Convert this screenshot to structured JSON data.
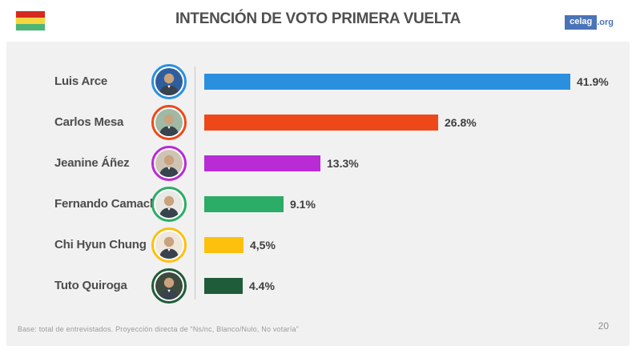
{
  "header": {
    "title": "INTENCIÓN DE VOTO PRIMERA VUELTA",
    "logo": {
      "brand": "celag",
      "suffix": ".org"
    },
    "flag": {
      "name": "bolivia-flag",
      "stripes": [
        "#D42A20",
        "#F5D640",
        "#4CB577"
      ]
    }
  },
  "chart_data": {
    "type": "bar",
    "orientation": "horizontal",
    "title": "INTENCIÓN DE VOTO PRIMERA VUELTA",
    "categories": [
      "Luis Arce",
      "Carlos Mesa",
      "Jeanine Áñez",
      "Fernando Camacho",
      "Chi Hyun Chung",
      "Tuto Quiroga"
    ],
    "values": [
      41.9,
      26.8,
      13.3,
      9.1,
      4.5,
      4.4
    ],
    "value_labels": [
      "41.9%",
      "26.8%",
      "13.3%",
      "9.1%",
      "4,5%",
      "4.4%"
    ],
    "bar_colors": [
      "#2B8FE0",
      "#EF4818",
      "#B82BD5",
      "#2BAC67",
      "#FDC00D",
      "#1F5C38"
    ],
    "avatar_bg": [
      "#2f5e9e",
      "#9fb9a5",
      "#cfc4b4",
      "#e8e8e4",
      "#efe7dc",
      "#3d4a3e"
    ],
    "xlim": [
      0,
      45
    ],
    "grid": false,
    "legend": "none",
    "unit": "percent"
  },
  "footer": {
    "note": "Base: total de entrevistados.  Proyección directa de “Ns/nc, Blanco/Nulo, No votaría”",
    "page_number": "20"
  }
}
